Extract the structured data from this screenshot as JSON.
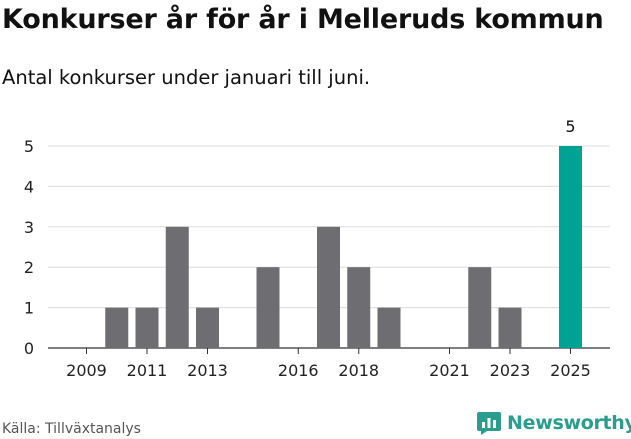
{
  "title": "Konkurser år för år i Melleruds kommun",
  "subtitle": "Antal konkurser under januari till juni.",
  "source": "Källa: Tillväxtanalys",
  "brand": {
    "name": "Newsworthy",
    "icon": "newsworthy-logo-icon",
    "color": "#2a9d8f"
  },
  "colors": {
    "default_bar": "#6e6d72",
    "highlight_bar": "#00a393",
    "grid": "#dcdcdc",
    "axis": "#333333"
  },
  "chart_data": {
    "type": "bar",
    "categories": [
      "2009",
      "2010",
      "2011",
      "2012",
      "2013",
      "2014",
      "2015",
      "2016",
      "2017",
      "2018",
      "2019",
      "2020",
      "2021",
      "2022",
      "2023",
      "2024",
      "2025"
    ],
    "values": [
      0,
      1,
      1,
      3,
      1,
      0,
      2,
      0,
      3,
      2,
      1,
      0,
      0,
      2,
      1,
      0,
      5
    ],
    "highlight": "2025",
    "data_labels": [
      {
        "category": "2025",
        "text": "5"
      }
    ],
    "x_tick_labels": [
      "2009",
      "2011",
      "2013",
      "2016",
      "2018",
      "2021",
      "2023",
      "2025"
    ],
    "y_ticks": [
      "0",
      "1",
      "2",
      "3",
      "4",
      "5"
    ],
    "ylim": [
      0,
      5
    ],
    "grid": true,
    "legend": "none",
    "title": "Konkurser år för år i Melleruds kommun",
    "subtitle": "Antal konkurser under januari till juni.",
    "xlabel": "",
    "ylabel": ""
  }
}
